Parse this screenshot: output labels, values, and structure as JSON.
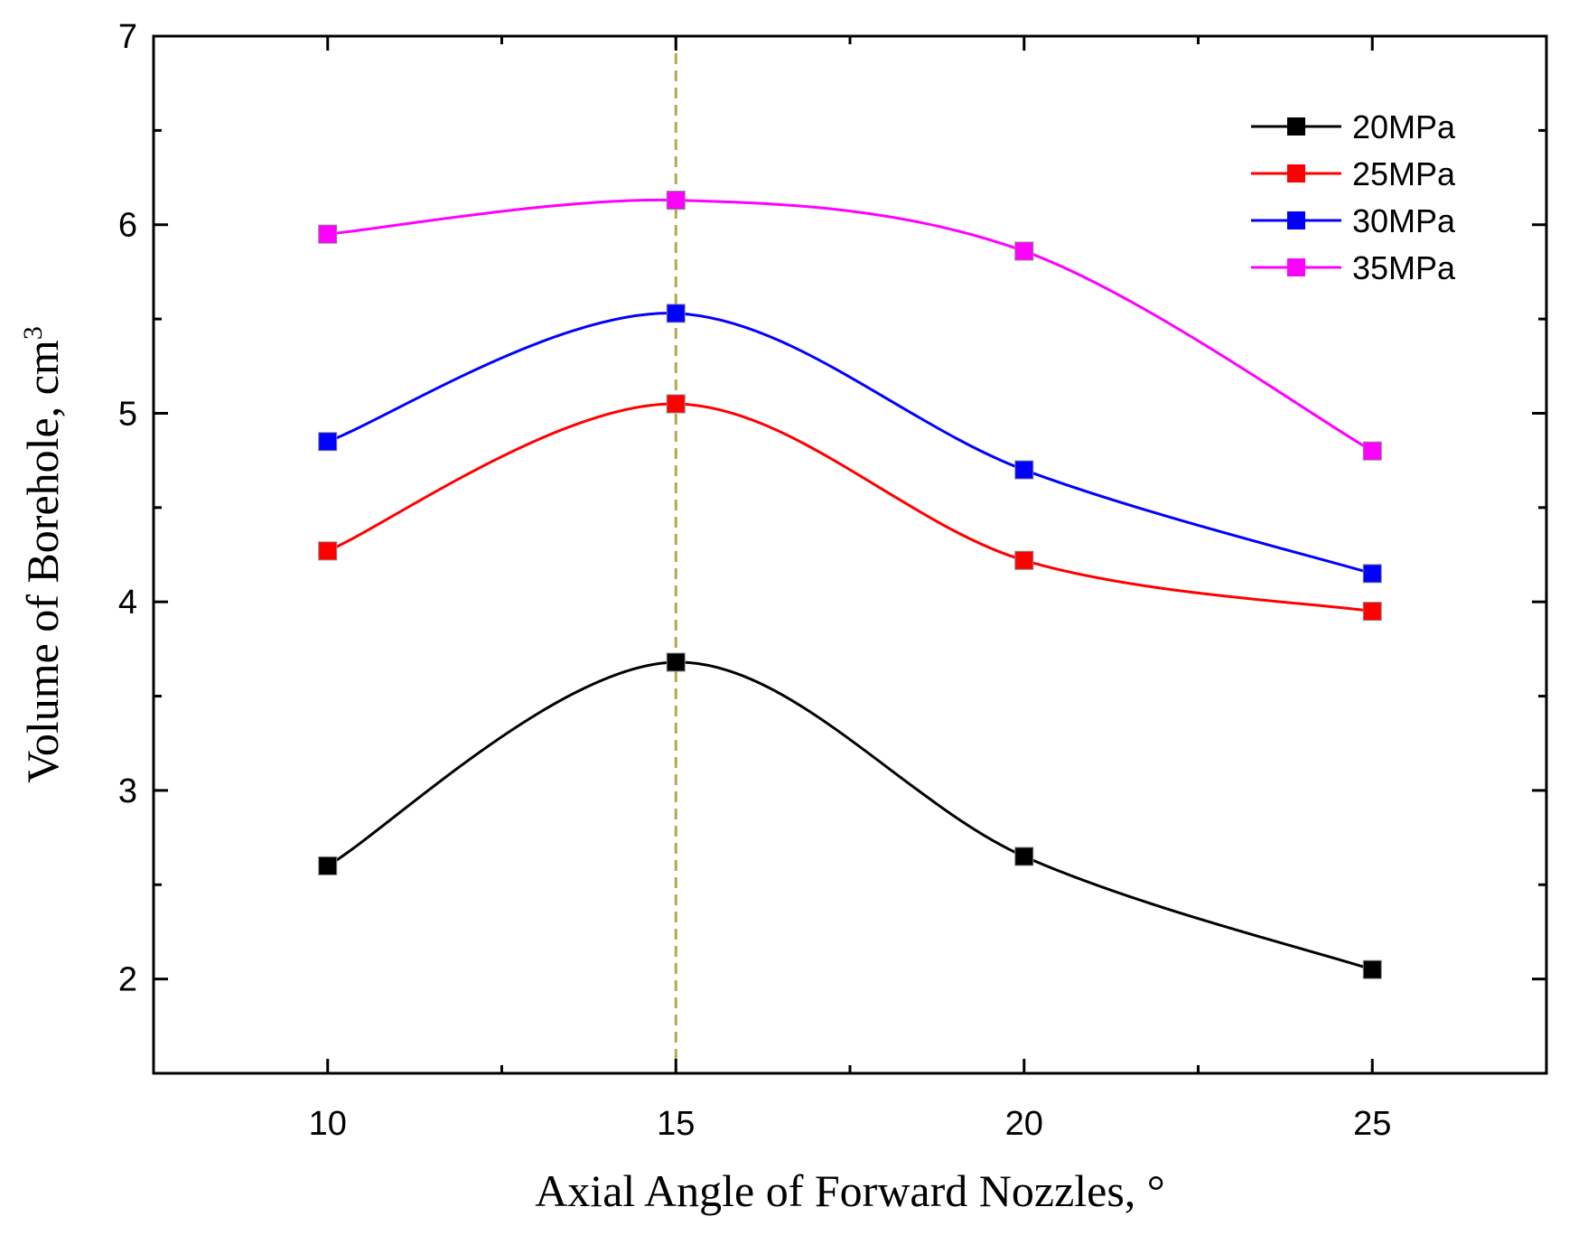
{
  "chart_data": {
    "type": "line",
    "title": "",
    "xlabel": "Axial Angle of Forward Nozzles, °",
    "ylabel": "Volume of Borehole, cm",
    "ylabel_superscript": "3",
    "xlim": [
      7.5,
      27.5
    ],
    "ylim": [
      1.5,
      7
    ],
    "x_ticks": [
      10,
      15,
      20,
      25
    ],
    "x_tick_labels": [
      "10",
      "15",
      "20",
      "25"
    ],
    "y_ticks": [
      2,
      3,
      4,
      5,
      6,
      7
    ],
    "y_tick_labels": [
      "2",
      "3",
      "4",
      "5",
      "6",
      "7"
    ],
    "reference_line_x": 15,
    "reference_line_color": "#b5a94a",
    "legend_position": "top-right",
    "x": [
      10,
      15,
      20,
      25
    ],
    "series": [
      {
        "name": "20MPa",
        "color": "#000000",
        "values": [
          2.6,
          3.68,
          2.65,
          2.05
        ]
      },
      {
        "name": "25MPa",
        "color": "#ff0000",
        "values": [
          4.27,
          5.05,
          4.22,
          3.95
        ]
      },
      {
        "name": "30MPa",
        "color": "#0000ff",
        "values": [
          4.85,
          5.53,
          4.7,
          4.15
        ]
      },
      {
        "name": "35MPa",
        "color": "#ff00ff",
        "values": [
          5.95,
          6.13,
          5.86,
          4.8
        ]
      }
    ]
  }
}
